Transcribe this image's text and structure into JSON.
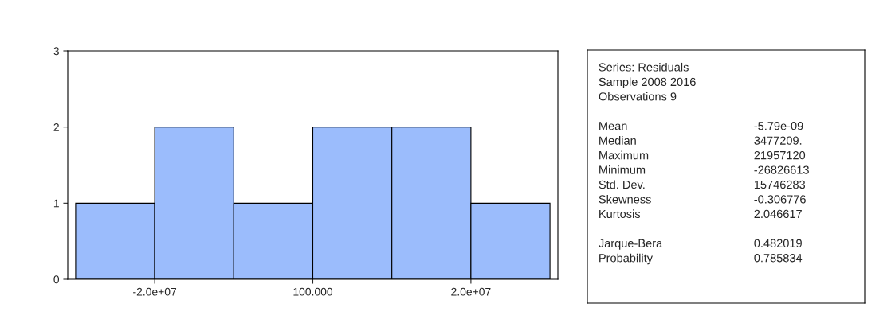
{
  "chart_data": [
    {
      "type": "histogram",
      "bins": [
        -30000000,
        -20000000,
        -10000000,
        0,
        10000000,
        20000000,
        30000000
      ],
      "values": [
        1,
        2,
        1,
        2,
        2,
        1
      ],
      "color": "#9bbcfc",
      "xlim": [
        -31000000,
        31000000
      ],
      "xticks": [
        {
          "value": -20000000,
          "label": "-2.0e+07"
        },
        {
          "value": 100,
          "label": "100.000"
        },
        {
          "value": 20000000,
          "label": "2.0e+07"
        }
      ],
      "ylim": [
        0,
        3
      ],
      "yticks": [
        0,
        1,
        2,
        3
      ],
      "grid": false,
      "legend": false
    },
    {
      "type": "other",
      "title": "Series: Residuals",
      "annotations": [
        "Sample 2008 2016",
        "Observations 9",
        "Mean",
        "-5.79e-09",
        "Median",
        "3477209.",
        "Maximum",
        "21957120",
        "Minimum",
        "-26826613",
        "Std. Dev.",
        "15746283",
        "Skewness",
        "-0.306776",
        "Kurtosis",
        "2.046617",
        "Jarque-Bera",
        "0.482019",
        "Probability",
        "0.785834"
      ]
    }
  ]
}
